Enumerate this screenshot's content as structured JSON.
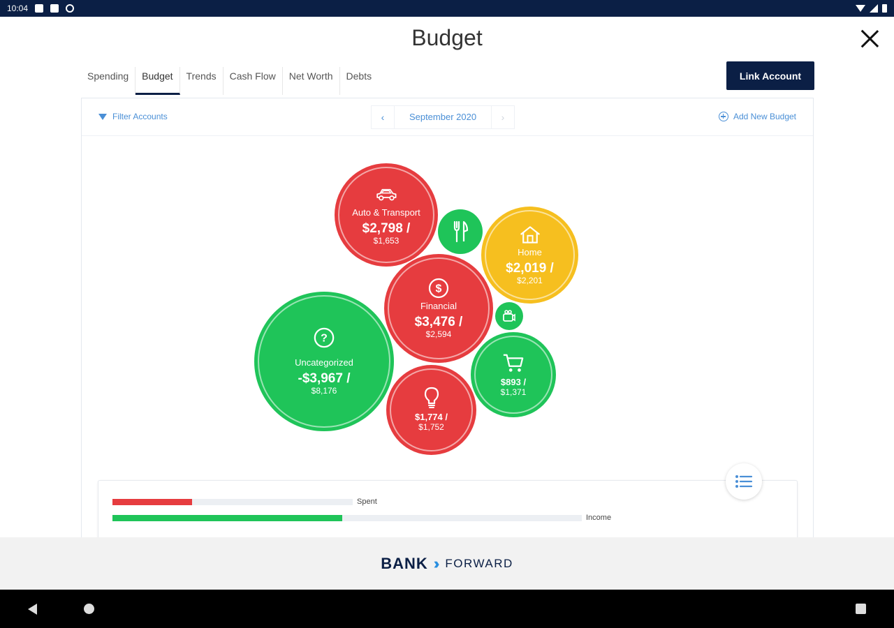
{
  "status_bar": {
    "time": "10:04"
  },
  "header": {
    "title": "Budget"
  },
  "tabs": [
    {
      "label": "Spending"
    },
    {
      "label": "Budget"
    },
    {
      "label": "Trends"
    },
    {
      "label": "Cash Flow"
    },
    {
      "label": "Net Worth"
    },
    {
      "label": "Debts"
    }
  ],
  "actions": {
    "link_account": "Link Account"
  },
  "toolbar": {
    "filter_accounts": "Filter Accounts",
    "month": "September 2020",
    "prev_icon": "chevron-left-icon",
    "next_icon": "chevron-right-icon",
    "add_new_budget": "Add New Budget"
  },
  "bubbles": {
    "auto": {
      "label": "Auto & Transport",
      "spent": "$2,798 /",
      "budget": "$1,653",
      "status": "over",
      "color": "#e63c3f",
      "icon": "car-icon"
    },
    "food": {
      "status": "under",
      "color": "#1fc459",
      "icon": "fork-knife-icon"
    },
    "home": {
      "label": "Home",
      "spent": "$2,019 /",
      "budget": "$2,201",
      "status": "near",
      "color": "#f6bf1f",
      "icon": "house-icon"
    },
    "financial": {
      "label": "Financial",
      "spent": "$3,476 /",
      "budget": "$2,594",
      "status": "over",
      "color": "#e63c3f",
      "icon": "dollar-icon"
    },
    "small_green": {
      "status": "under",
      "color": "#1fc459",
      "icon": "camera-icon"
    },
    "uncategorized": {
      "label": "Uncategorized",
      "spent": "-$3,967 /",
      "budget": "$8,176",
      "status": "under",
      "color": "#1fc459",
      "icon": "question-icon"
    },
    "shopping": {
      "spent": "$893 /",
      "budget": "$1,371",
      "status": "under",
      "color": "#1fc459",
      "icon": "shopping-cart-icon"
    },
    "bills": {
      "spent": "$1,774 /",
      "budget": "$1,752",
      "status": "over",
      "color": "#e63c3f",
      "icon": "lightbulb-icon"
    }
  },
  "summary": {
    "spent_label": "Spent",
    "spent_fraction": 0.33,
    "income_label": "Income",
    "income_fraction": 0.49,
    "list_icon": "list-icon"
  },
  "footer": {
    "brand_left": "BANK",
    "brand_right": "FORWARD"
  },
  "colors": {
    "navy": "#0b1f45",
    "link_blue": "#4a8fd6",
    "red": "#e63c3f",
    "green": "#1fc459",
    "yellow": "#f6bf1f"
  }
}
